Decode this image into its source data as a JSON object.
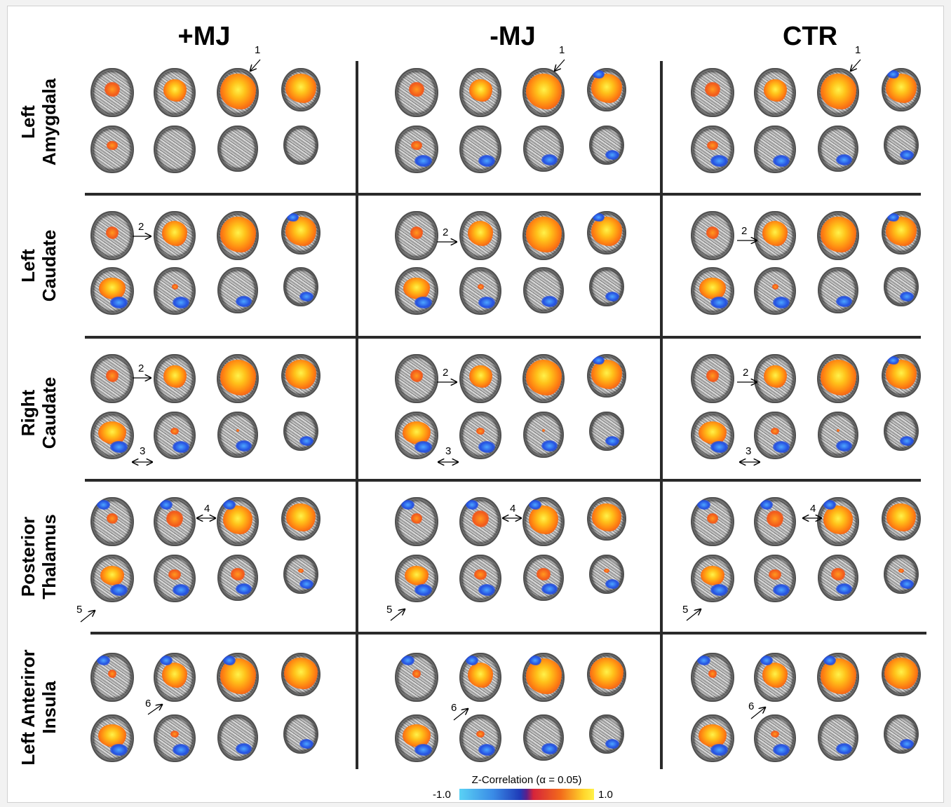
{
  "columns": [
    "+MJ",
    "-MJ",
    "CTR"
  ],
  "rows": [
    {
      "line1": "Left",
      "line2": "Amygdala"
    },
    {
      "line1": "Left",
      "line2": "Caudate"
    },
    {
      "line1": "Right",
      "line2": "Caudate"
    },
    {
      "line1": "Posterior",
      "line2": "Thalamus"
    },
    {
      "line1": "Left Anteriror",
      "line2": "Insula"
    }
  ],
  "arrow_labels": [
    "1",
    "2",
    "3",
    "4",
    "5",
    "6"
  ],
  "colorbar": {
    "title": "Z-Correlation (α = 0.05)",
    "min": "-1.0",
    "max": "1.0"
  }
}
